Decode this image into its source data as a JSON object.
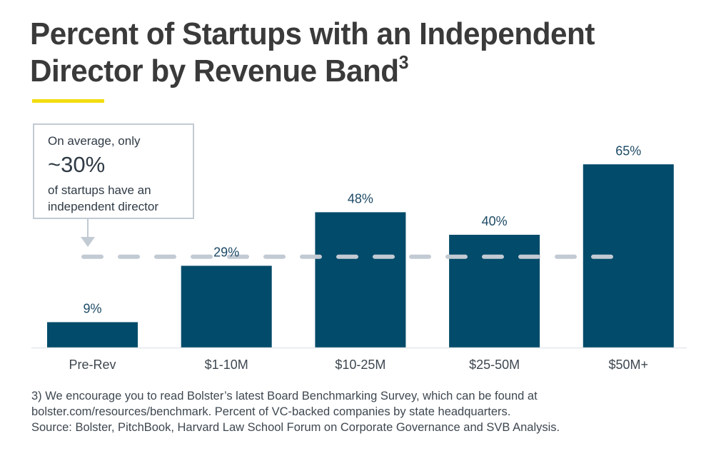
{
  "title": {
    "text": "Percent of Startups with an Independent Director by Revenue Band",
    "superscript": "3"
  },
  "colors": {
    "accent": "#f2dd0f",
    "bar": "#034b6a",
    "reference_line": "#c2cad3",
    "label_text": "#1d4a66",
    "axis_text": "#3e4750",
    "baseline": "#e4e8ec"
  },
  "callout": {
    "line1": "On average, only",
    "highlight": "~30%",
    "line3": "of startups have an independent director"
  },
  "chart_data": {
    "type": "bar",
    "title": "Percent of Startups with an Independent Director by Revenue Band",
    "xlabel": "",
    "ylabel": "",
    "categories": [
      "Pre-Rev",
      "$1-10M",
      "$10-25M",
      "$25-50M",
      "$50M+"
    ],
    "values": [
      9,
      29,
      48,
      40,
      65
    ],
    "value_labels": [
      "9%",
      "29%",
      "48%",
      "40%",
      "65%"
    ],
    "unit": "%",
    "ylim": [
      0,
      70
    ],
    "grid": false,
    "legend": "none",
    "reference_line": {
      "value": 30,
      "label": "~30% average",
      "style": "dashed"
    }
  },
  "footnote": {
    "lines": [
      "3) We encourage you to read Bolster’s latest Board Benchmarking Survey, which can be found at",
      "bolster.com/resources/benchmark. Percent of VC-backed companies by state headquarters.",
      "Source: Bolster, PitchBook, Harvard Law School Forum on Corporate Governance and SVB Analysis."
    ]
  }
}
